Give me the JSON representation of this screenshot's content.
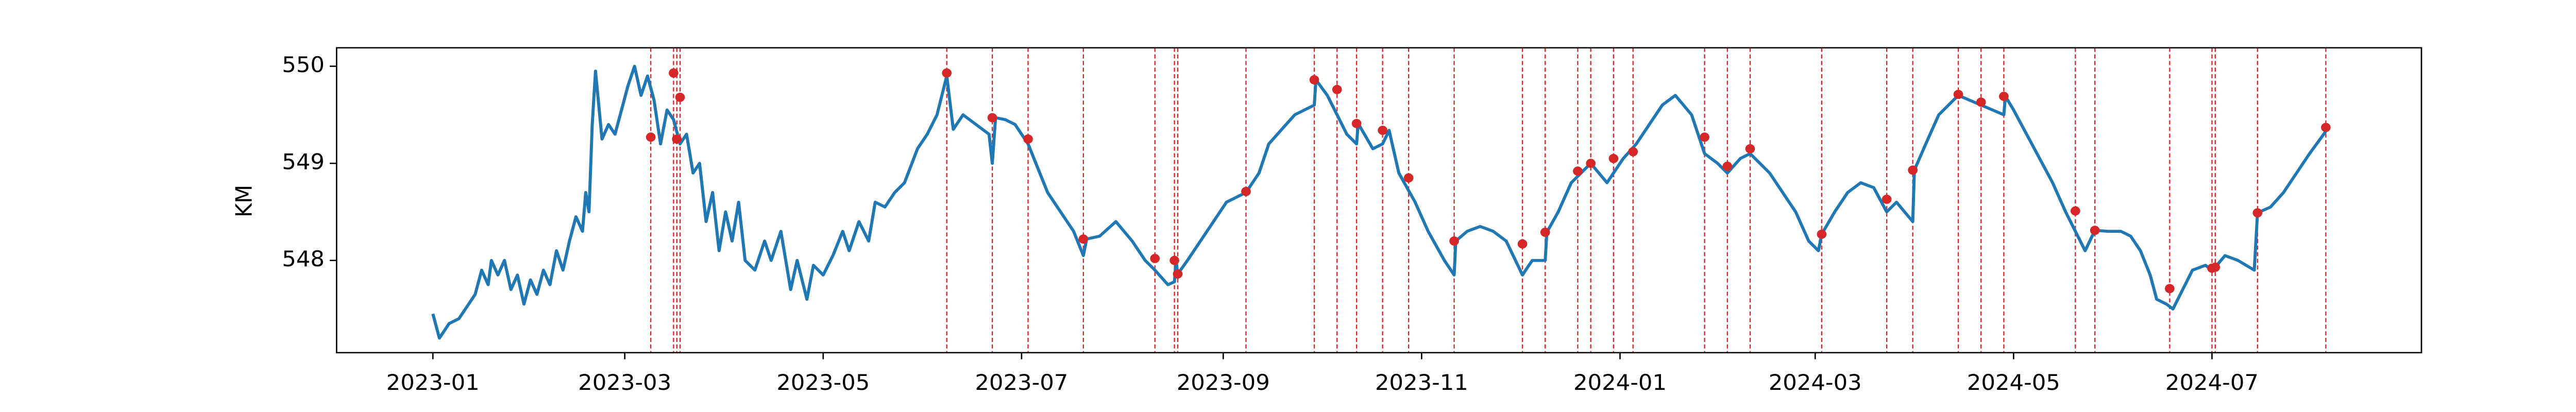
{
  "chart_data": {
    "type": "line",
    "ylabel": "KM",
    "xlim": [
      -29.6,
      611.4
    ],
    "ylim": [
      547.05,
      550.19
    ],
    "xticks": [
      {
        "value": 0,
        "label": "2023-01"
      },
      {
        "value": 59,
        "label": "2023-03"
      },
      {
        "value": 120,
        "label": "2023-05"
      },
      {
        "value": 181,
        "label": "2023-07"
      },
      {
        "value": 243,
        "label": "2023-09"
      },
      {
        "value": 304,
        "label": "2023-11"
      },
      {
        "value": 365,
        "label": "2024-01"
      },
      {
        "value": 425,
        "label": "2024-03"
      },
      {
        "value": 486,
        "label": "2024-05"
      },
      {
        "value": 547,
        "label": "2024-07"
      }
    ],
    "yticks": [
      548,
      549,
      550
    ],
    "series": [
      {
        "color": "#1f77b4",
        "x": [
          0,
          2,
          5,
          8,
          10,
          13,
          15,
          17,
          18,
          20,
          22,
          24,
          26,
          28,
          30,
          32,
          34,
          36,
          38,
          40,
          42,
          44,
          46,
          47,
          48,
          49,
          50,
          52,
          54,
          56,
          58,
          60,
          62,
          64,
          66,
          68,
          70,
          72,
          74,
          76,
          78,
          80,
          82,
          84,
          86,
          88,
          90,
          92,
          94,
          96,
          99,
          102,
          104,
          107,
          110,
          112,
          115,
          117,
          120,
          123,
          126,
          128,
          131,
          134,
          136,
          139,
          142,
          145,
          149,
          152,
          155,
          158,
          160,
          163,
          167,
          171,
          172,
          173,
          176,
          179,
          183,
          186,
          189,
          193,
          197,
          200,
          201,
          205,
          210,
          215,
          219,
          222,
          226,
          228,
          228.5,
          229,
          232,
          236,
          240,
          244,
          250,
          254,
          257,
          261,
          265,
          271,
          271.5,
          275,
          278,
          281,
          284,
          284.5,
          289,
          292,
          294,
          297,
          302,
          306,
          311,
          314,
          314.5,
          318,
          322,
          326,
          330,
          335,
          338,
          342,
          342.5,
          346,
          350,
          356,
          361,
          366,
          370,
          374,
          378,
          382,
          387,
          391,
          395,
          398,
          402,
          405,
          408,
          411,
          415,
          419,
          423,
          426,
          427,
          431,
          435,
          439,
          443,
          447,
          450,
          455,
          455.5,
          459,
          463,
          469,
          476,
          483,
          483.5,
          486,
          490,
          494,
          498,
          502,
          505,
          508,
          511,
          515,
          519,
          522,
          525,
          528,
          530,
          533,
          535,
          538,
          541,
          545,
          547,
          548,
          551,
          555,
          560,
          561,
          565,
          569,
          573,
          577,
          582
        ],
        "values": [
          547.45,
          547.2,
          547.35,
          547.4,
          547.5,
          547.65,
          547.9,
          547.75,
          548.0,
          547.85,
          548.0,
          547.7,
          547.85,
          547.55,
          547.8,
          547.65,
          547.9,
          547.75,
          548.1,
          547.9,
          548.2,
          548.45,
          548.3,
          548.7,
          548.5,
          549.4,
          549.95,
          549.25,
          549.4,
          549.3,
          549.55,
          549.8,
          550.0,
          549.7,
          549.9,
          549.65,
          549.2,
          549.55,
          549.45,
          549.2,
          549.3,
          548.9,
          549.0,
          548.4,
          548.7,
          548.1,
          548.5,
          548.2,
          548.6,
          548.0,
          547.9,
          548.2,
          548.0,
          548.3,
          547.7,
          548.0,
          547.6,
          547.95,
          547.85,
          548.05,
          548.3,
          548.1,
          548.4,
          548.2,
          548.6,
          548.55,
          548.7,
          548.8,
          549.15,
          549.3,
          549.5,
          549.9,
          549.35,
          549.5,
          549.4,
          549.3,
          549.0,
          549.47,
          549.45,
          549.4,
          549.2,
          548.95,
          548.7,
          548.5,
          548.3,
          548.05,
          548.22,
          548.25,
          548.4,
          548.2,
          548.0,
          547.9,
          547.75,
          547.78,
          548.0,
          547.86,
          548.0,
          548.2,
          548.4,
          548.6,
          548.7,
          548.9,
          549.2,
          549.35,
          549.5,
          549.6,
          549.86,
          549.7,
          549.5,
          549.3,
          549.2,
          549.41,
          549.15,
          549.2,
          549.34,
          548.9,
          548.6,
          548.3,
          548.0,
          547.85,
          548.2,
          548.3,
          548.35,
          548.3,
          548.2,
          547.85,
          548.0,
          548.0,
          548.29,
          548.5,
          548.8,
          549.0,
          548.8,
          549.05,
          549.2,
          549.4,
          549.6,
          549.7,
          549.5,
          549.1,
          549.0,
          548.9,
          549.05,
          549.1,
          549.0,
          548.9,
          548.7,
          548.5,
          548.2,
          548.1,
          548.27,
          548.5,
          548.7,
          548.8,
          548.75,
          548.5,
          548.6,
          548.4,
          548.93,
          549.2,
          549.5,
          549.7,
          549.6,
          549.5,
          549.69,
          549.55,
          549.3,
          549.05,
          548.8,
          548.5,
          548.3,
          548.1,
          548.31,
          548.3,
          548.3,
          548.25,
          548.1,
          547.85,
          547.6,
          547.55,
          547.5,
          547.7,
          547.9,
          547.95,
          547.9,
          547.93,
          548.05,
          548.0,
          547.9,
          548.49,
          548.55,
          548.7,
          548.9,
          549.1,
          549.33
        ]
      }
    ],
    "events": {
      "color": "#d62728",
      "x": [
        67,
        74,
        75,
        76,
        158,
        172,
        183,
        200,
        222,
        228,
        229,
        250,
        271,
        278,
        284,
        292,
        300,
        314,
        335,
        342,
        352,
        356,
        363,
        369,
        391,
        398,
        405,
        427,
        447,
        455,
        469,
        476,
        483,
        505,
        511,
        534,
        547,
        548,
        561,
        582
      ],
      "values": [
        549.27,
        549.93,
        549.25,
        549.68,
        549.93,
        549.47,
        549.25,
        548.22,
        548.02,
        548.0,
        547.86,
        548.71,
        549.86,
        549.76,
        549.41,
        549.34,
        548.85,
        548.2,
        548.17,
        548.29,
        548.92,
        549.0,
        549.05,
        549.12,
        549.27,
        548.97,
        549.15,
        548.27,
        548.63,
        548.93,
        549.71,
        549.63,
        549.69,
        548.51,
        548.31,
        547.71,
        547.92,
        547.93,
        548.49,
        549.37
      ]
    }
  }
}
